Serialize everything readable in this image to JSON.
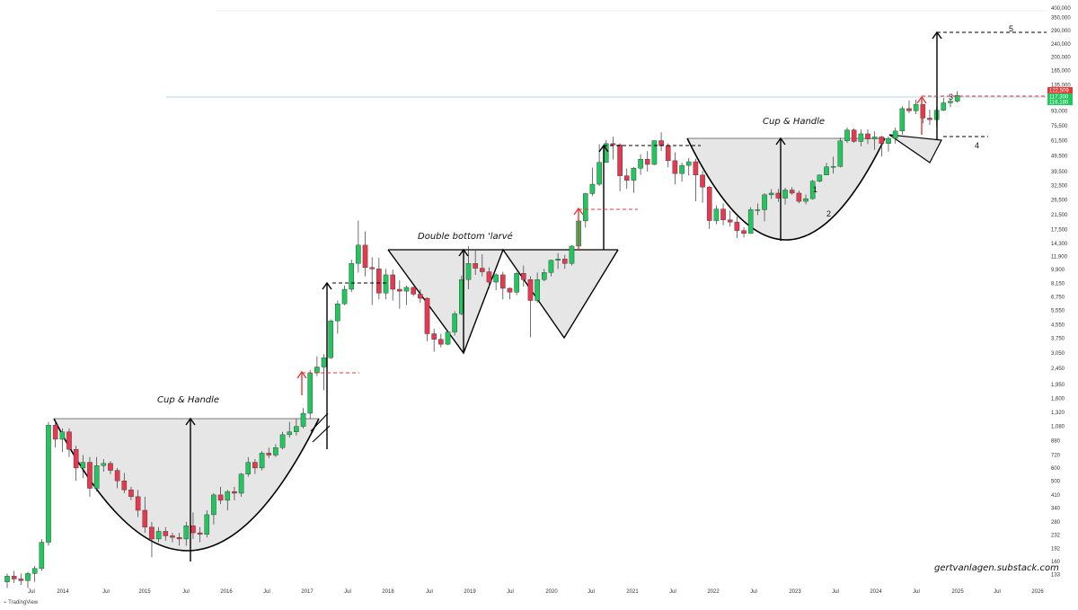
{
  "chart_data": {
    "type": "candlestick",
    "scale": "log",
    "y_ticks": [
      "400,000",
      "350,000",
      "290,000",
      "240,000",
      "200,000",
      "165,000",
      "135,000",
      "93,000",
      "75,500",
      "61,500",
      "49,500",
      "39,500",
      "32,500",
      "26,500",
      "21,500",
      "17,500",
      "14,300",
      "11,900",
      "9,900",
      "8,150",
      "6,750",
      "5,550",
      "4,550",
      "3,750",
      "3,050",
      "2,450",
      "1,950",
      "1,600",
      "1,320",
      "1,080",
      "880",
      "720",
      "600",
      "500",
      "410",
      "340",
      "280",
      "232",
      "192",
      "160",
      "133"
    ],
    "y_tick_values": [
      400000,
      350000,
      290000,
      240000,
      200000,
      165000,
      135000,
      93000,
      75500,
      61500,
      49500,
      39500,
      32500,
      26500,
      21500,
      17500,
      14300,
      11900,
      9900,
      8150,
      6750,
      5550,
      4550,
      3750,
      3050,
      2450,
      1950,
      1600,
      1320,
      1080,
      880,
      720,
      600,
      500,
      410,
      340,
      280,
      232,
      192,
      160,
      133
    ],
    "x_ticks": [
      "Jul",
      "2014",
      "Jul",
      "2015",
      "Jul",
      "2016",
      "Jul",
      "2017",
      "Jul",
      "2018",
      "Jul",
      "2019",
      "Jul",
      "2020",
      "Jul",
      "2021",
      "Jul",
      "2022",
      "Jul",
      "2023",
      "Jul",
      "2024",
      "Jul",
      "2025",
      "Jul",
      "2026"
    ],
    "price_labels": [
      {
        "text": "122,509",
        "color": "#e53935"
      },
      {
        "text": "117,300",
        "color": "#22c55e"
      },
      {
        "text": "116,180",
        "color": "#22c55e"
      }
    ],
    "candles": [
      [
        120,
        135,
        110,
        130
      ],
      [
        130,
        140,
        118,
        125
      ],
      [
        125,
        135,
        115,
        122
      ],
      [
        122,
        138,
        110,
        135
      ],
      [
        135,
        150,
        120,
        145
      ],
      [
        145,
        220,
        140,
        210
      ],
      [
        210,
        1150,
        200,
        1100
      ],
      [
        1100,
        1160,
        800,
        900
      ],
      [
        900,
        1050,
        750,
        1000
      ],
      [
        1000,
        1050,
        700,
        780
      ],
      [
        780,
        820,
        500,
        600
      ],
      [
        600,
        720,
        520,
        650
      ],
      [
        650,
        700,
        400,
        450
      ],
      [
        450,
        700,
        430,
        620
      ],
      [
        620,
        680,
        570,
        640
      ],
      [
        640,
        660,
        550,
        580
      ],
      [
        580,
        600,
        450,
        500
      ],
      [
        500,
        560,
        420,
        440
      ],
      [
        440,
        460,
        380,
        400
      ],
      [
        400,
        440,
        300,
        330
      ],
      [
        330,
        400,
        240,
        260
      ],
      [
        260,
        280,
        170,
        220
      ],
      [
        220,
        260,
        210,
        245
      ],
      [
        245,
        260,
        215,
        230
      ],
      [
        230,
        240,
        210,
        225
      ],
      [
        225,
        240,
        200,
        220
      ],
      [
        220,
        280,
        200,
        265
      ],
      [
        265,
        320,
        220,
        240
      ],
      [
        240,
        260,
        210,
        235
      ],
      [
        235,
        330,
        225,
        310
      ],
      [
        310,
        420,
        270,
        410
      ],
      [
        410,
        460,
        360,
        380
      ],
      [
        380,
        440,
        330,
        430
      ],
      [
        430,
        460,
        380,
        420
      ],
      [
        420,
        560,
        400,
        550
      ],
      [
        550,
        700,
        530,
        650
      ],
      [
        650,
        680,
        550,
        600
      ],
      [
        600,
        760,
        580,
        740
      ],
      [
        740,
        800,
        690,
        720
      ],
      [
        720,
        840,
        700,
        800
      ],
      [
        800,
        1000,
        780,
        960
      ],
      [
        960,
        1150,
        920,
        1000
      ],
      [
        1000,
        1200,
        950,
        1080
      ],
      [
        1080,
        1400,
        1050,
        1300
      ],
      [
        1300,
        2400,
        1200,
        2300
      ],
      [
        2300,
        2900,
        2200,
        2500
      ],
      [
        2500,
        3000,
        1800,
        2850
      ],
      [
        2850,
        4900,
        2800,
        4800
      ],
      [
        4800,
        6400,
        4000,
        6100
      ],
      [
        6100,
        7900,
        6000,
        7500
      ],
      [
        7500,
        11400,
        7200,
        10800
      ],
      [
        10800,
        19800,
        9500,
        14000
      ],
      [
        14000,
        17000,
        9000,
        10200
      ],
      [
        10200,
        11800,
        6000,
        10000
      ],
      [
        10000,
        11700,
        6500,
        7100
      ],
      [
        7100,
        10000,
        6500,
        9200
      ],
      [
        9200,
        9900,
        6400,
        7500
      ],
      [
        7500,
        8500,
        5700,
        7300
      ],
      [
        7300,
        7900,
        6000,
        7700
      ],
      [
        7700,
        7800,
        6800,
        7000
      ],
      [
        7000,
        7500,
        6200,
        6600
      ],
      [
        6600,
        6700,
        3600,
        4000
      ],
      [
        4000,
        4300,
        3100,
        3700
      ],
      [
        3700,
        4000,
        3300,
        3450
      ],
      [
        3450,
        4150,
        3400,
        4100
      ],
      [
        4100,
        5500,
        3900,
        5300
      ],
      [
        5300,
        9100,
        5200,
        8600
      ],
      [
        8600,
        13800,
        7500,
        10800
      ],
      [
        10800,
        13200,
        9200,
        10100
      ],
      [
        10100,
        12300,
        9000,
        9600
      ],
      [
        9600,
        10200,
        7600,
        8300
      ],
      [
        8300,
        9400,
        7400,
        9200
      ],
      [
        9200,
        9600,
        6500,
        7600
      ],
      [
        7600,
        7700,
        6500,
        7200
      ],
      [
        7200,
        9600,
        6900,
        9400
      ],
      [
        9400,
        10500,
        7800,
        8600
      ],
      [
        8600,
        9000,
        3800,
        6400
      ],
      [
        6400,
        9500,
        6200,
        8600
      ],
      [
        8600,
        10000,
        8400,
        9500
      ],
      [
        9500,
        11400,
        9000,
        11300
      ],
      [
        11300,
        12500,
        10000,
        11500
      ],
      [
        11500,
        12200,
        10000,
        10800
      ],
      [
        10800,
        14000,
        10500,
        13800
      ],
      [
        13800,
        19800,
        13200,
        19700
      ],
      [
        19700,
        29300,
        18000,
        29000
      ],
      [
        29000,
        41900,
        28000,
        33100
      ],
      [
        33100,
        58300,
        32300,
        45100
      ],
      [
        45100,
        61800,
        45000,
        58800
      ],
      [
        58800,
        64800,
        47000,
        57700
      ],
      [
        57700,
        59000,
        30000,
        37300
      ],
      [
        37300,
        41300,
        31000,
        35000
      ],
      [
        35000,
        42300,
        29300,
        41500
      ],
      [
        41500,
        50500,
        37800,
        47100
      ],
      [
        47100,
        52900,
        39600,
        43800
      ],
      [
        43800,
        61500,
        43300,
        61300
      ],
      [
        61300,
        69000,
        53000,
        57000
      ],
      [
        57000,
        59000,
        42000,
        46200
      ],
      [
        46200,
        52000,
        33000,
        38500
      ],
      [
        38500,
        45000,
        34300,
        43200
      ],
      [
        43200,
        48000,
        37500,
        45500
      ],
      [
        45500,
        47500,
        26000,
        37700
      ],
      [
        37700,
        40000,
        25500,
        31800
      ],
      [
        31800,
        32400,
        17600,
        19800
      ],
      [
        19800,
        24600,
        18800,
        23300
      ],
      [
        23300,
        25200,
        18500,
        20000
      ],
      [
        20000,
        22800,
        18200,
        19400
      ],
      [
        19400,
        21000,
        15500,
        17200
      ],
      [
        17200,
        18000,
        15600,
        16500
      ],
      [
        16500,
        23900,
        16500,
        23100
      ],
      [
        23100,
        25200,
        21400,
        23100
      ],
      [
        23100,
        29200,
        19600,
        28500
      ],
      [
        28500,
        30900,
        26900,
        29200
      ],
      [
        29200,
        31000,
        25800,
        27200
      ],
      [
        27200,
        31500,
        24800,
        30500
      ],
      [
        30500,
        31800,
        28500,
        29200
      ],
      [
        29200,
        30200,
        25300,
        26000
      ],
      [
        26000,
        28600,
        24900,
        27000
      ],
      [
        27000,
        35200,
        26600,
        34500
      ],
      [
        34500,
        38000,
        34100,
        37700
      ],
      [
        37700,
        44700,
        37600,
        42300
      ],
      [
        42300,
        48900,
        38500,
        42600
      ],
      [
        42600,
        63900,
        42000,
        61100
      ],
      [
        61100,
        73800,
        59300,
        71300
      ],
      [
        71300,
        72800,
        59500,
        60600
      ],
      [
        60600,
        71900,
        56500,
        67500
      ],
      [
        67500,
        72000,
        58400,
        62700
      ],
      [
        62700,
        70000,
        53900,
        64600
      ],
      [
        64600,
        65600,
        49000,
        58900
      ],
      [
        58900,
        64900,
        52500,
        63300
      ],
      [
        63300,
        73600,
        58900,
        70200
      ],
      [
        70200,
        99800,
        66800,
        96400
      ],
      [
        96400,
        108300,
        90500,
        93400
      ],
      [
        93400,
        109500,
        89200,
        102400
      ],
      [
        102400,
        102700,
        78200,
        84300
      ],
      [
        84300,
        95000,
        76600,
        82500
      ],
      [
        82500,
        97900,
        74500,
        94200
      ],
      [
        94200,
        111900,
        93300,
        104600
      ],
      [
        104600,
        110400,
        98200,
        107100
      ],
      [
        107100,
        123200,
        105100,
        116180
      ]
    ],
    "annotations": [
      "Cup & Handle",
      "Double bottom 'larvé",
      "Cup & Handle",
      "1",
      "2",
      "3",
      "4",
      "5"
    ],
    "watermark": "gertvanlagen.substack.com",
    "platform_logo": "TradingView"
  }
}
